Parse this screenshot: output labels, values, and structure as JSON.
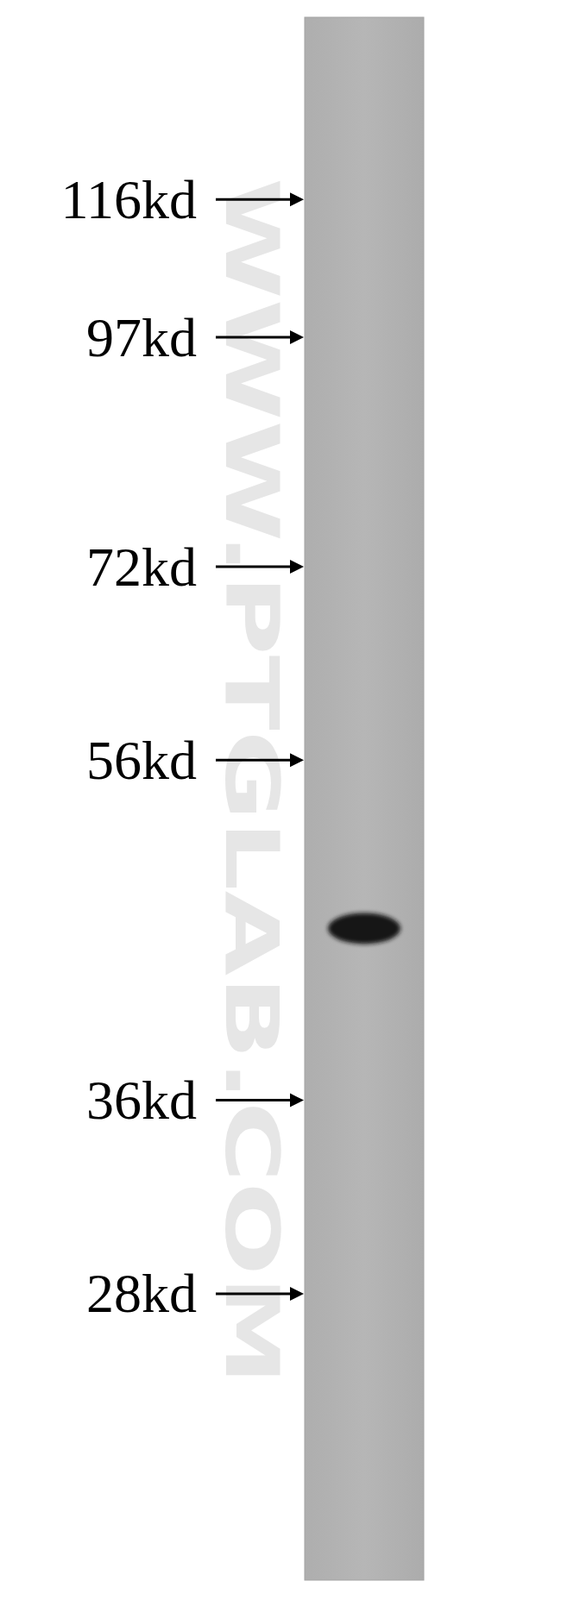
{
  "chart_data": {
    "type": "western_blot",
    "watermark": "WWW.PTGLAB.COM",
    "log": "y",
    "ylim": [
      19.3,
      147
    ],
    "yticks": [
      {
        "value": 116,
        "label": "116kd"
      },
      {
        "value": 97,
        "label": "97kd"
      },
      {
        "value": 72,
        "label": "72kd"
      },
      {
        "value": 56,
        "label": "56kd"
      },
      {
        "value": 36,
        "label": "36kd"
      },
      {
        "value": 28,
        "label": "28kd"
      }
    ],
    "categories": [
      null
    ],
    "values": [
      45
    ],
    "color": "#161616"
  }
}
